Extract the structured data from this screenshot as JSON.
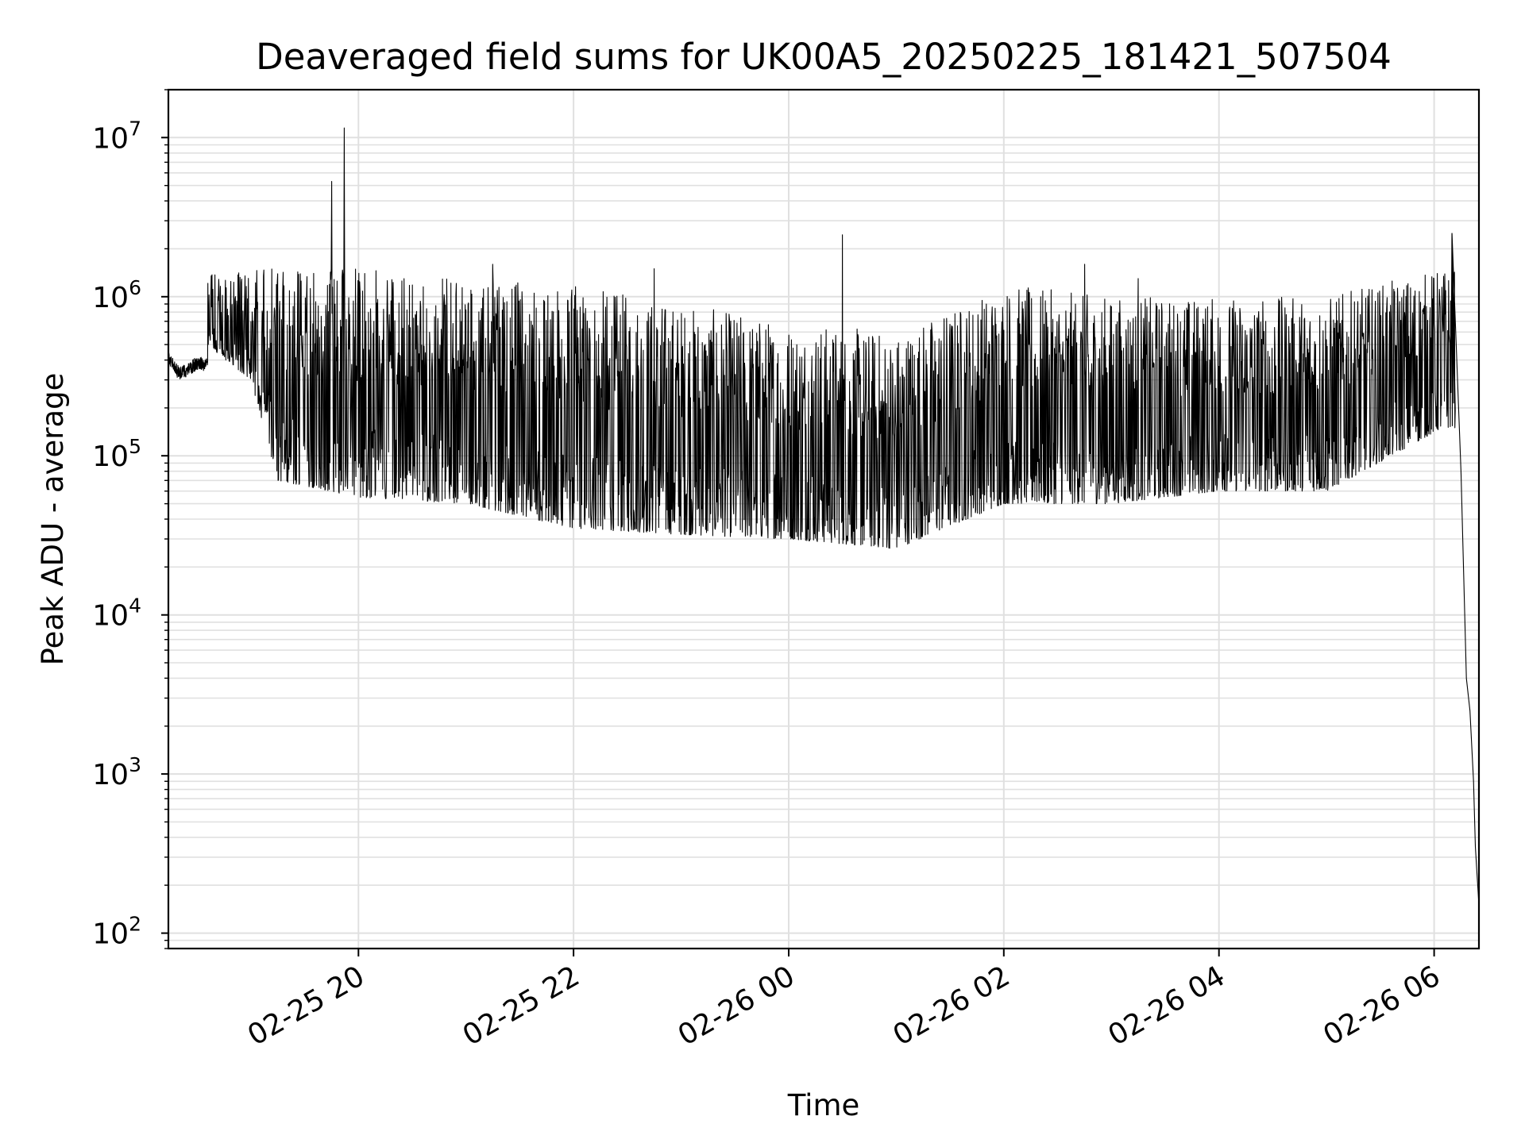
{
  "chart_data": {
    "type": "line",
    "title": "Deaveraged field sums for UK00A5_20250225_181421_507504",
    "xlabel": "Time",
    "ylabel": "Peak ADU - average",
    "yscale": "log",
    "ylim": [
      80,
      20000000
    ],
    "xlim": [
      "2025-02-25 18:14",
      "2025-02-26 06:25"
    ],
    "grid": true,
    "line_color": "#000000",
    "grid_color": "#e0e0e0",
    "x_ticks": [
      {
        "value": "2025-02-25 20:00",
        "label": "02-25 20"
      },
      {
        "value": "2025-02-25 22:00",
        "label": "02-25 22"
      },
      {
        "value": "2025-02-26 00:00",
        "label": "02-26 00"
      },
      {
        "value": "2025-02-26 02:00",
        "label": "02-26 02"
      },
      {
        "value": "2025-02-26 04:00",
        "label": "02-26 04"
      },
      {
        "value": "2025-02-26 06:00",
        "label": "02-26 06"
      }
    ],
    "y_ticks": [
      {
        "value": 100,
        "base": "10",
        "exp": "2"
      },
      {
        "value": 1000,
        "base": "10",
        "exp": "3"
      },
      {
        "value": 10000,
        "base": "10",
        "exp": "4"
      },
      {
        "value": 100000,
        "base": "10",
        "exp": "5"
      },
      {
        "value": 1000000,
        "base": "10",
        "exp": "6"
      },
      {
        "value": 10000000,
        "base": "10",
        "exp": "7"
      }
    ],
    "series": [
      {
        "points": [
          [
            "2025-02-25 18:14",
            420000
          ],
          [
            "2025-02-25 18:20",
            330000
          ],
          [
            "2025-02-25 18:30",
            380000
          ],
          [
            "2025-02-25 18:36",
            1000000
          ],
          [
            "2025-02-25 18:50",
            700000
          ],
          [
            "2025-02-25 19:00",
            600000
          ],
          [
            "2025-02-25 19:10",
            350000
          ],
          [
            "2025-02-25 19:20",
            200000
          ],
          [
            "2025-02-25 19:40",
            120000
          ],
          [
            "2025-02-25 19:45",
            5300000
          ],
          [
            "2025-02-25 19:52",
            11500000
          ],
          [
            "2025-02-25 20:00",
            200000
          ],
          [
            "2025-02-25 21:00",
            160000
          ],
          [
            "2025-02-25 22:00",
            120000
          ],
          [
            "2025-02-25 23:00",
            110000
          ],
          [
            "2025-02-26 00:00",
            100000
          ],
          [
            "2025-02-26 00:30",
            2450000
          ],
          [
            "2025-02-26 01:00",
            80000
          ],
          [
            "2025-02-26 02:00",
            120000
          ],
          [
            "2025-02-26 03:00",
            180000
          ],
          [
            "2025-02-26 04:00",
            190000
          ],
          [
            "2025-02-26 05:00",
            220000
          ],
          [
            "2025-02-26 05:55",
            350000
          ],
          [
            "2025-02-26 06:05",
            1300000
          ],
          [
            "2025-02-26 06:10",
            2500000
          ],
          [
            "2025-02-26 06:15",
            80000
          ],
          [
            "2025-02-26 06:18",
            4000
          ],
          [
            "2025-02-26 06:20",
            2500
          ],
          [
            "2025-02-26 06:22",
            900
          ],
          [
            "2025-02-26 06:23",
            350
          ],
          [
            "2025-02-26 06:24",
            230
          ],
          [
            "2025-02-26 06:25",
            150
          ]
        ],
        "envelope_upper": [
          [
            "2025-02-25 18:35",
            1400000
          ],
          [
            "2025-02-25 19:00",
            1500000
          ],
          [
            "2025-02-25 20:00",
            1500000
          ],
          [
            "2025-02-25 21:00",
            1300000
          ],
          [
            "2025-02-25 22:00",
            1200000
          ],
          [
            "2025-02-25 23:00",
            900000
          ],
          [
            "2025-02-26 00:00",
            700000
          ],
          [
            "2025-02-26 01:00",
            600000
          ],
          [
            "2025-02-26 02:00",
            1200000
          ],
          [
            "2025-02-26 03:00",
            1000000
          ],
          [
            "2025-02-26 04:00",
            1000000
          ],
          [
            "2025-02-26 05:00",
            1000000
          ],
          [
            "2025-02-26 06:05",
            1500000
          ]
        ],
        "envelope_lower": [
          [
            "2025-02-25 18:35",
            500000
          ],
          [
            "2025-02-25 19:00",
            300000
          ],
          [
            "2025-02-25 19:15",
            70000
          ],
          [
            "2025-02-25 20:00",
            55000
          ],
          [
            "2025-02-25 21:00",
            50000
          ],
          [
            "2025-02-25 22:00",
            35000
          ],
          [
            "2025-02-25 23:00",
            32000
          ],
          [
            "2025-02-26 00:00",
            30000
          ],
          [
            "2025-02-26 01:00",
            26000
          ],
          [
            "2025-02-26 02:00",
            50000
          ],
          [
            "2025-02-26 03:00",
            50000
          ],
          [
            "2025-02-26 04:00",
            60000
          ],
          [
            "2025-02-26 05:00",
            60000
          ],
          [
            "2025-02-26 06:05",
            150000
          ]
        ],
        "spikes": [
          [
            "2025-02-25 19:45",
            5300000
          ],
          [
            "2025-02-25 19:52",
            11500000
          ],
          [
            "2025-02-26 00:30",
            2450000
          ],
          [
            "2025-02-26 06:10",
            2500000
          ],
          [
            "2025-02-25 21:15",
            1600000
          ],
          [
            "2025-02-25 22:45",
            1500000
          ],
          [
            "2025-02-26 02:45",
            1600000
          ],
          [
            "2025-02-26 03:15",
            1300000
          ]
        ]
      }
    ]
  }
}
